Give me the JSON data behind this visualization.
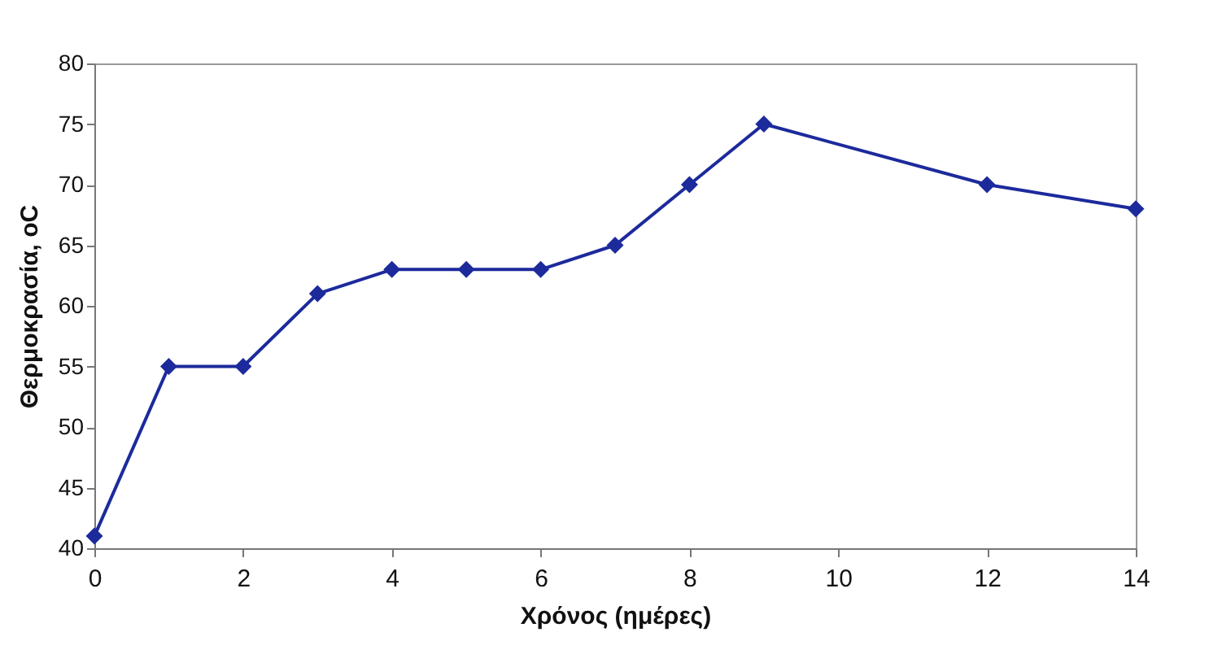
{
  "chart_data": {
    "type": "line",
    "xlabel": "Χρόνος (ημέρες)",
    "ylabel": "Θερμοκρασία, oC",
    "x": [
      0,
      1,
      2,
      3,
      4,
      5,
      6,
      7,
      8,
      9,
      12,
      14
    ],
    "series": [
      {
        "color": "#1c2a9c",
        "values": [
          41,
          55,
          55,
          61,
          63,
          63,
          63,
          65,
          70,
          75,
          70,
          68
        ]
      }
    ],
    "xlim": [
      0,
      14
    ],
    "xticks": [
      0,
      2,
      4,
      6,
      8,
      10,
      12,
      14
    ],
    "ylim": [
      40,
      80
    ],
    "yticks": [
      40,
      45,
      50,
      55,
      60,
      65,
      70,
      75,
      80
    ],
    "grid": false,
    "marker": "diamond",
    "line_style": "solid"
  }
}
